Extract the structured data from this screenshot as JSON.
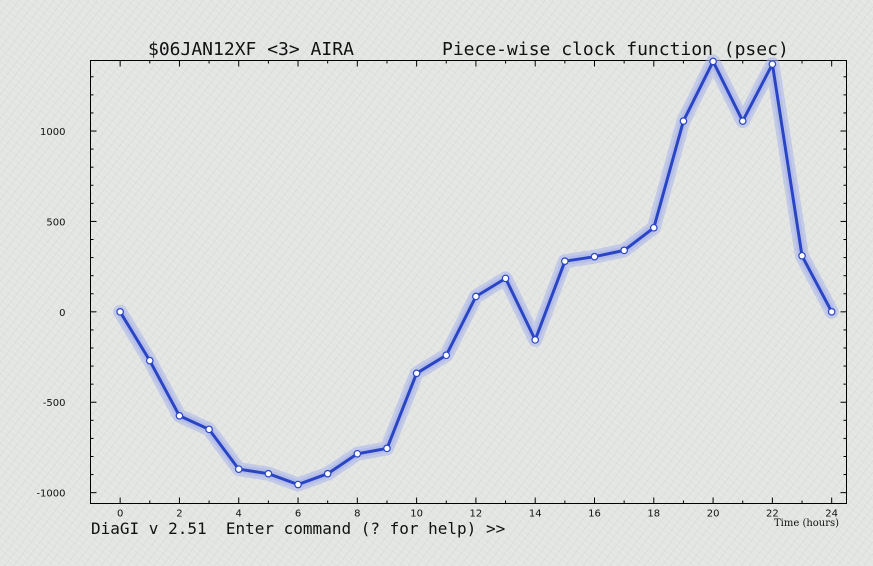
{
  "header": {
    "experiment": "$06JAN12XF <3>  AIRA",
    "function_title": "Piece-wise clock function (psec)"
  },
  "command_line": {
    "text": "DiaGI v 2.51  Enter command (? for help) >>"
  },
  "colors": {
    "line": "#2a45c4",
    "error_band": "#aab4ea",
    "marker_fill": "#ffffff",
    "frame": "#000000"
  },
  "chart_data": {
    "type": "line",
    "title": "Piece-wise clock function (psec)",
    "xlabel": "Time (hours)",
    "ylabel": "",
    "xlim": [
      -1,
      24.5
    ],
    "ylim": [
      -1060,
      1390
    ],
    "xticks": [
      0,
      2,
      4,
      6,
      8,
      10,
      12,
      14,
      16,
      18,
      20,
      22,
      24
    ],
    "yticks": [
      -1000,
      -500,
      0,
      500,
      1000
    ],
    "grid": false,
    "series": [
      {
        "x": [
          0,
          1,
          2,
          3,
          4,
          5,
          6,
          7,
          8,
          9,
          10,
          11,
          12,
          13,
          14,
          15,
          16,
          17,
          18,
          19,
          20,
          21,
          22,
          23,
          24
        ],
        "values": [
          0,
          -270,
          -575,
          -650,
          -870,
          -895,
          -955,
          -895,
          -785,
          -755,
          -340,
          -240,
          85,
          185,
          -155,
          280,
          305,
          340,
          465,
          1055,
          1385,
          1055,
          1370,
          310,
          0
        ]
      }
    ]
  }
}
